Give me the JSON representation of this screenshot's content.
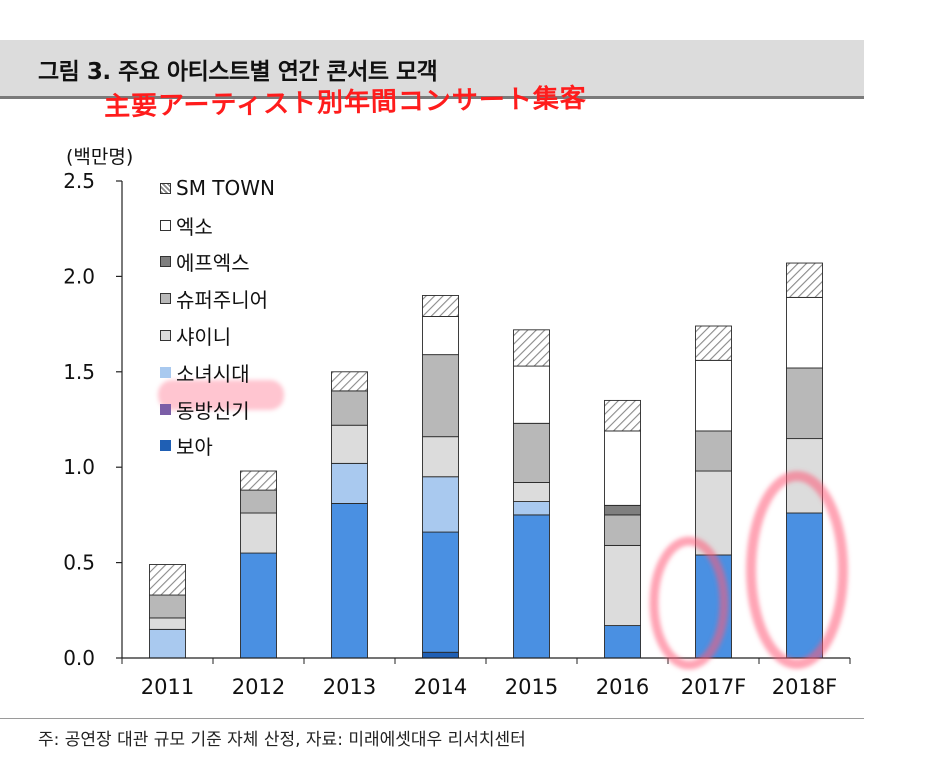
{
  "title": "그림 3. 주요 아티스트별 연간 콘서트 모객",
  "handwritten_note": "主要アーティスト別年間コンサート集客",
  "unit_label": "(백만명)",
  "footnote": "주: 공연장 대관 규모 기준 자체 산정, 자료: 미래에셋대우 리서치센터",
  "colors": {
    "title_band": "#dcdcdc",
    "annotation": "#ff1c1c"
  },
  "chart_data": {
    "type": "bar",
    "stacked": true,
    "categories": [
      "2011",
      "2012",
      "2013",
      "2014",
      "2015",
      "2016",
      "2017F",
      "2018F"
    ],
    "ylim": [
      0,
      2.5
    ],
    "yticks": [
      "0.0",
      "0.5",
      "1.0",
      "1.5",
      "2.0",
      "2.5"
    ],
    "grid": false,
    "legend_position": "top-left",
    "series": [
      {
        "name": "보아",
        "color": "#1f5fb4",
        "values": [
          0,
          0,
          0,
          0.03,
          0,
          0,
          0,
          0
        ]
      },
      {
        "name": "동방신기",
        "color": "#7b5ea7",
        "values": [
          0,
          0,
          0,
          0,
          0,
          0,
          0,
          0
        ]
      },
      {
        "name": "소녀시대",
        "color": "#4a90e2",
        "values": [
          0,
          0.55,
          0.81,
          0.63,
          0.75,
          0.17,
          0.54,
          0.76
        ]
      },
      {
        "name": "소녀시대(light)",
        "color": "#a9c9ef",
        "values": [
          0.15,
          0,
          0.21,
          0.29,
          0.07,
          0,
          0,
          0
        ]
      },
      {
        "name": "샤이니",
        "color": "#dcdcdc",
        "values": [
          0.06,
          0.21,
          0.2,
          0.21,
          0.1,
          0.42,
          0.44,
          0.39
        ]
      },
      {
        "name": "슈퍼주니어",
        "color": "#b8b8b8",
        "values": [
          0.12,
          0.12,
          0.18,
          0.43,
          0.31,
          0.16,
          0.21,
          0.37
        ]
      },
      {
        "name": "에프엑스",
        "color": "#7f7f7f",
        "values": [
          0,
          0,
          0,
          0,
          0,
          0.05,
          0,
          0
        ]
      },
      {
        "name": "엑소",
        "color": "#ffffff",
        "values": [
          0,
          0,
          0,
          0.2,
          0.3,
          0.39,
          0.37,
          0.37
        ]
      },
      {
        "name": "SM TOWN",
        "color": "hatch",
        "values": [
          0.16,
          0.1,
          0.1,
          0.11,
          0.19,
          0.16,
          0.18,
          0.18
        ]
      }
    ],
    "legend": [
      "SM TOWN",
      "엑소",
      "에프엑스",
      "슈퍼주니어",
      "샤이니",
      "소녀시대",
      "동방신기",
      "보아"
    ],
    "legend_colors": [
      "hatch",
      "#ffffff",
      "#7f7f7f",
      "#b8b8b8",
      "#dcdcdc",
      "#a9c9ef",
      "#7b5ea7",
      "#1f5fb4"
    ]
  }
}
